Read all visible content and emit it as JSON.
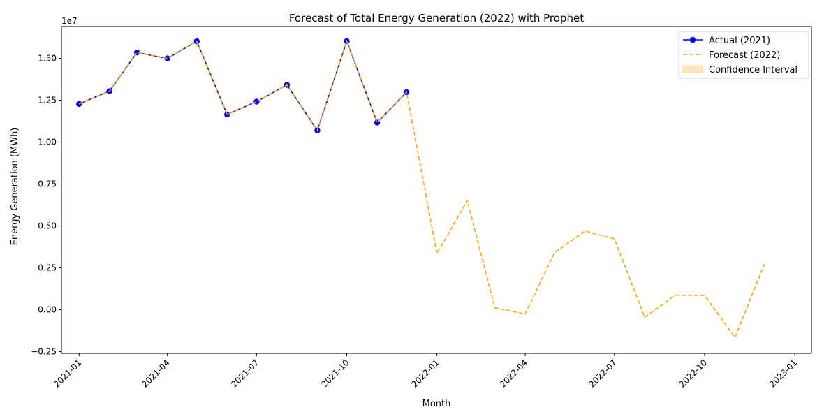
{
  "chart_data": {
    "type": "line",
    "title": "Forecast of Total Energy Generation (2022) with Prophet",
    "xlabel": "Month",
    "ylabel": "Energy Generation (MWh)",
    "y_offset_label": "1e7",
    "y_scale": 10000000,
    "xlim": [
      "2020-12-14",
      "2023-01-18"
    ],
    "ylim": [
      -2600000,
      16900000
    ],
    "x_ticks": [
      "2021-01",
      "2021-04",
      "2021-07",
      "2021-10",
      "2022-01",
      "2022-04",
      "2022-07",
      "2022-10",
      "2023-01"
    ],
    "y_ticks": [
      -2500000,
      0,
      2500000,
      5000000,
      7500000,
      10000000,
      12500000,
      15000000
    ],
    "y_tick_labels": [
      "−0.25",
      "0.00",
      "0.25",
      "0.50",
      "0.75",
      "1.00",
      "1.25",
      "1.50"
    ],
    "legend_position": "top-right",
    "series": [
      {
        "name": "Actual (2021)",
        "style": "solid-marker",
        "color": "#0000ff",
        "x": [
          "2021-01-01",
          "2021-02-01",
          "2021-03-01",
          "2021-04-01",
          "2021-05-01",
          "2021-06-01",
          "2021-07-01",
          "2021-08-01",
          "2021-09-01",
          "2021-10-01",
          "2021-11-01",
          "2021-12-01"
        ],
        "values": [
          12280000,
          13050000,
          15350000,
          15000000,
          16020000,
          11650000,
          12420000,
          13420000,
          10700000,
          16030000,
          11170000,
          12980000
        ]
      },
      {
        "name": "Forecast (2022)",
        "style": "dashed",
        "color": "#ffa500",
        "x": [
          "2021-01-01",
          "2021-02-01",
          "2021-03-01",
          "2021-04-01",
          "2021-05-01",
          "2021-06-01",
          "2021-07-01",
          "2021-08-01",
          "2021-09-01",
          "2021-10-01",
          "2021-11-01",
          "2021-12-01",
          "2022-01-01",
          "2022-02-01",
          "2022-03-01",
          "2022-04-01",
          "2022-05-01",
          "2022-06-01",
          "2022-07-01",
          "2022-08-01",
          "2022-09-01",
          "2022-10-01",
          "2022-11-01",
          "2022-12-01"
        ],
        "values": [
          12280000,
          13050000,
          15350000,
          15000000,
          16020000,
          11650000,
          12420000,
          13420000,
          10700000,
          16030000,
          11170000,
          12980000,
          3350000,
          6520000,
          120000,
          -250000,
          3420000,
          4700000,
          4230000,
          -450000,
          870000,
          860000,
          -1650000,
          2730000
        ]
      },
      {
        "name": "Confidence Interval",
        "style": "fill",
        "color": "#ffa500"
      }
    ]
  }
}
